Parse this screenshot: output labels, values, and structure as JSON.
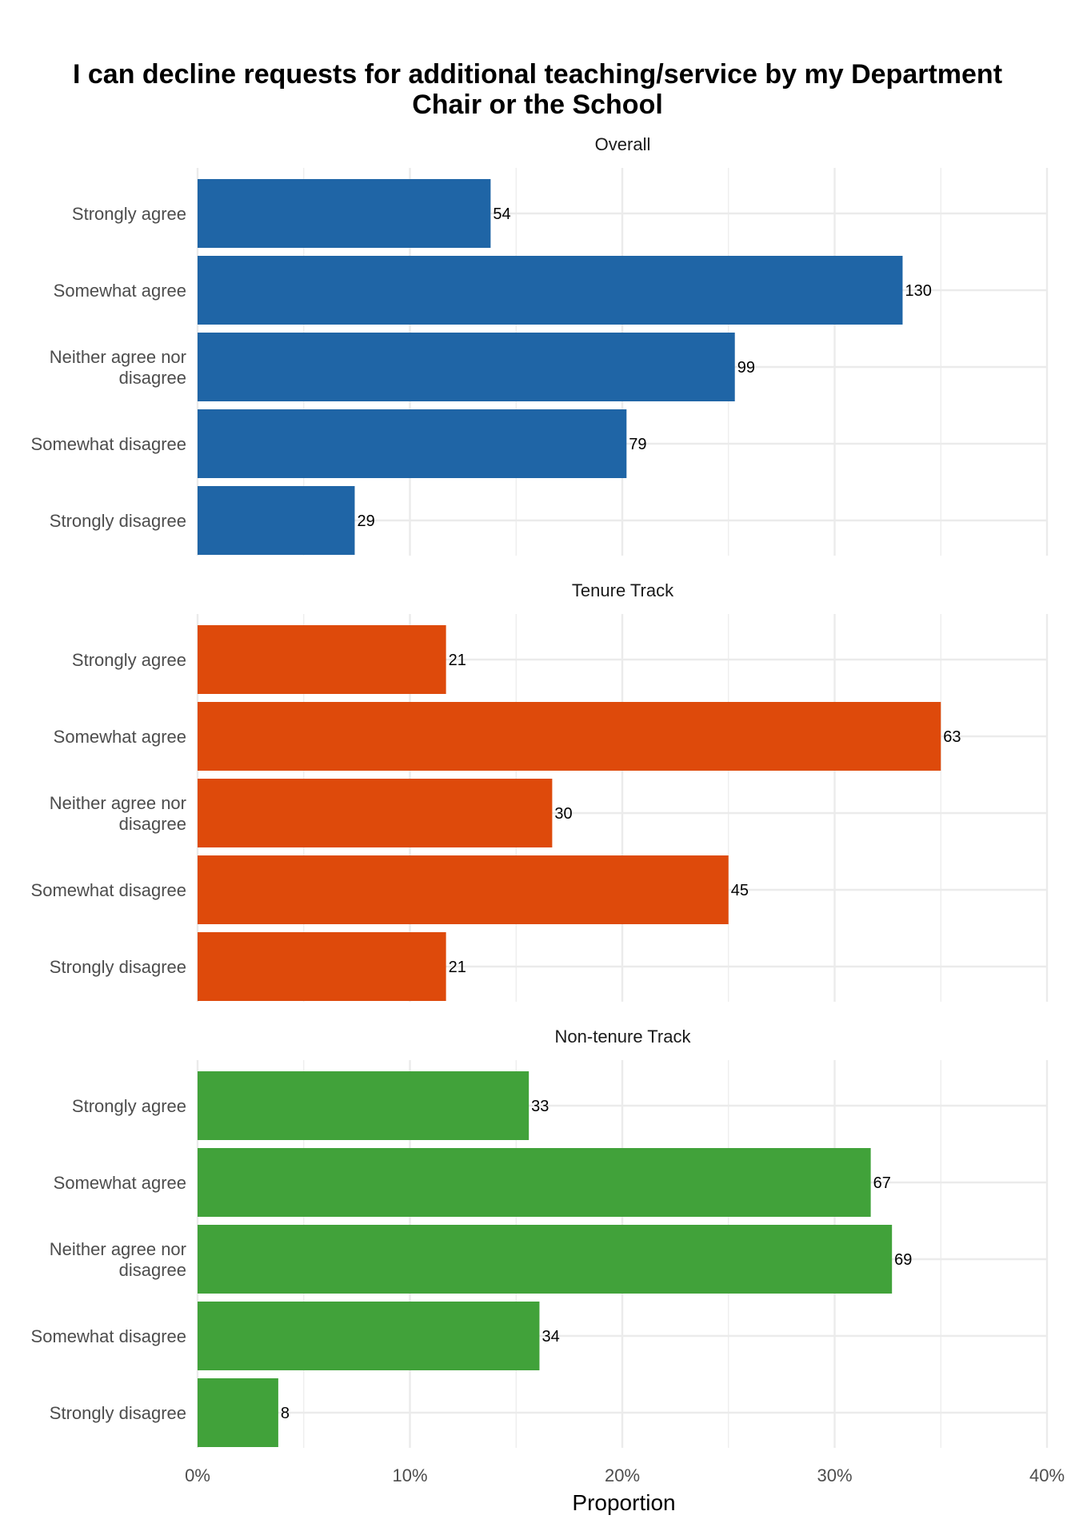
{
  "chart_data": {
    "type": "bar",
    "orientation": "horizontal",
    "title_lines": [
      "I can decline requests for additional teaching/service by my Department",
      "Chair or the School"
    ],
    "xlabel": "Proportion",
    "ylabel": "",
    "xlim": [
      0,
      0.4
    ],
    "x_ticks": [
      0,
      0.1,
      0.2,
      0.3,
      0.4
    ],
    "x_tick_labels": [
      "0%",
      "10%",
      "20%",
      "30%",
      "40%"
    ],
    "grid": true,
    "legend": "none",
    "categories": [
      [
        "Strongly agree"
      ],
      [
        "Somewhat agree"
      ],
      [
        "Neither agree nor",
        "disagree"
      ],
      [
        "Somewhat disagree"
      ],
      [
        "Strongly disagree"
      ]
    ],
    "panels": [
      {
        "name": "Overall",
        "color": "#1f65a6",
        "proportions": [
          0.138,
          0.332,
          0.253,
          0.202,
          0.074
        ],
        "counts": [
          54,
          130,
          99,
          79,
          29
        ]
      },
      {
        "name": "Tenure Track",
        "color": "#de4a0b",
        "proportions": [
          0.117,
          0.35,
          0.167,
          0.25,
          0.117
        ],
        "counts": [
          21,
          63,
          30,
          45,
          21
        ]
      },
      {
        "name": "Non-tenure Track",
        "color": "#41a23a",
        "proportions": [
          0.156,
          0.317,
          0.327,
          0.161,
          0.038
        ],
        "counts": [
          33,
          67,
          69,
          34,
          8
        ]
      }
    ]
  }
}
